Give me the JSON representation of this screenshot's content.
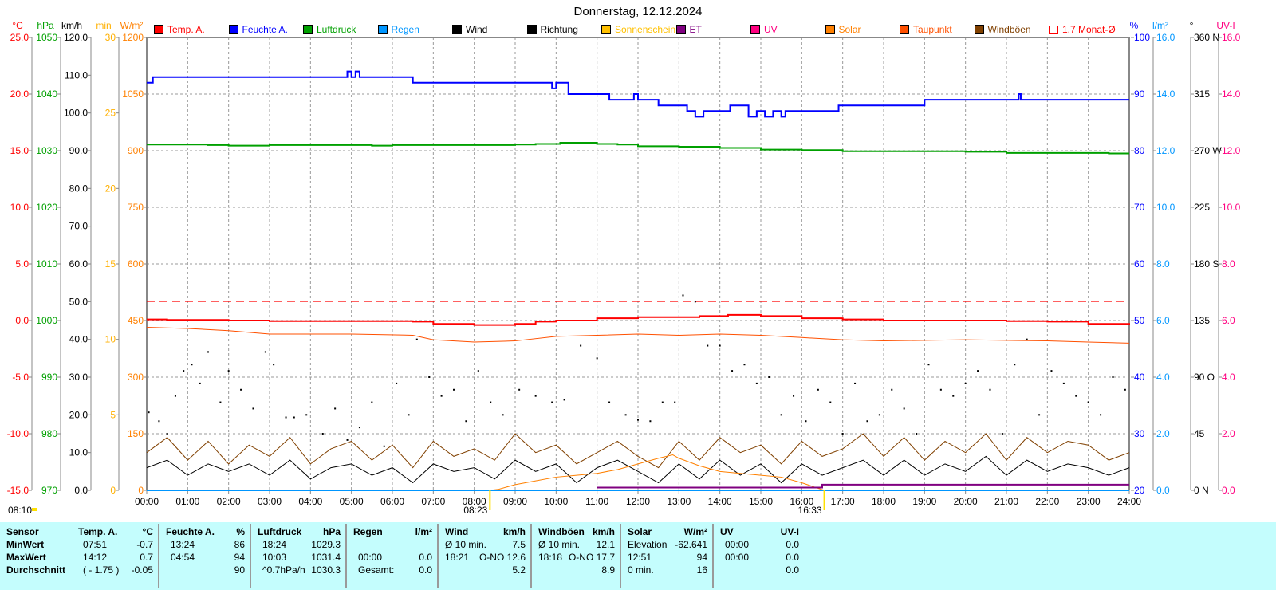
{
  "title": "Donnerstag, 12.12.2024",
  "legend": [
    {
      "label": "Temp. A.",
      "color": "#ff0000"
    },
    {
      "label": "Feuchte A.",
      "color": "#0000ff"
    },
    {
      "label": "Luftdruck",
      "color": "#00a000"
    },
    {
      "label": "Regen",
      "color": "#0096ff"
    },
    {
      "label": "Wind",
      "color": "#000000"
    },
    {
      "label": "Richtung",
      "color": "#000000"
    },
    {
      "label": "Sonnenschein",
      "color": "#ffc000"
    },
    {
      "label": "ET",
      "color": "#800080"
    },
    {
      "label": "UV",
      "color": "#ff0080"
    },
    {
      "label": "Solar",
      "color": "#ff8000"
    },
    {
      "label": "Taupunkt",
      "color": "#ff5000"
    },
    {
      "label": "Windböen",
      "color": "#804000"
    },
    {
      "label": "1.7 Monat-Ø",
      "color": "#ff0000",
      "outline": true
    }
  ],
  "sun_markers": {
    "left": "08:10",
    "sunrise": "08:23",
    "sunset": "16:33"
  },
  "chart_data": {
    "type": "line",
    "title": "Donnerstag, 12.12.2024",
    "x_ticks": [
      "00:00",
      "01:00",
      "02:00",
      "03:00",
      "04:00",
      "05:00",
      "06:00",
      "07:00",
      "08:00",
      "09:00",
      "10:00",
      "11:00",
      "12:00",
      "13:00",
      "14:00",
      "15:00",
      "16:00",
      "17:00",
      "18:00",
      "19:00",
      "20:00",
      "21:00",
      "22:00",
      "23:00",
      "24:00"
    ],
    "xlim": [
      0,
      24
    ],
    "grid": true,
    "axes": {
      "temp": {
        "unit": "°C",
        "color": "#ff0000",
        "side": "left",
        "range": [
          -15,
          25
        ],
        "ticks": [
          "25.0",
          "20.0",
          "15.0",
          "10.0",
          "5.0",
          "0.0",
          "-5.0",
          "-10.0",
          "-15.0"
        ]
      },
      "pressure": {
        "unit": "hPa",
        "color": "#00a000",
        "side": "left",
        "range": [
          970,
          1050
        ],
        "ticks": [
          "1050",
          "1040",
          "1030",
          "1020",
          "1010",
          "1000",
          "990",
          "980",
          "970"
        ]
      },
      "wind": {
        "unit": "km/h",
        "color": "#000000",
        "side": "left",
        "range": [
          0,
          120
        ],
        "ticks": [
          "120.0",
          "110.0",
          "100.0",
          "90.0",
          "80.0",
          "70.0",
          "60.0",
          "50.0",
          "40.0",
          "30.0",
          "20.0",
          "10.0",
          "0.0"
        ]
      },
      "sunshine": {
        "unit": "min",
        "color": "#ffb000",
        "side": "left",
        "range": [
          0,
          30
        ],
        "ticks": [
          "30",
          "25",
          "20",
          "15",
          "10",
          "5",
          "0"
        ]
      },
      "solar": {
        "unit": "W/m²",
        "color": "#ff8000",
        "side": "left",
        "range": [
          0,
          1200
        ],
        "ticks": [
          "1200",
          "1050",
          "900",
          "750",
          "600",
          "450",
          "300",
          "150",
          "0"
        ]
      },
      "humidity": {
        "unit": "%",
        "color": "#0000ff",
        "side": "right",
        "range": [
          20,
          100
        ],
        "ticks": [
          "100",
          "90",
          "80",
          "70",
          "60",
          "50",
          "40",
          "30",
          "20"
        ]
      },
      "rain": {
        "unit": "l/m²",
        "color": "#0096ff",
        "side": "right",
        "range": [
          0,
          16
        ],
        "ticks": [
          "16.0",
          "14.0",
          "12.0",
          "10.0",
          "8.0",
          "6.0",
          "4.0",
          "2.0",
          "0.0"
        ]
      },
      "direction": {
        "unit": "°",
        "color": "#000000",
        "side": "right",
        "range": [
          0,
          360
        ],
        "ticks": [
          "360 N",
          "315",
          "270 W",
          "225",
          "180 S",
          "135",
          "90 O",
          "45",
          "0 N"
        ]
      },
      "uv": {
        "unit": "UV-I",
        "color": "#ff0080",
        "side": "right",
        "range": [
          0,
          16
        ],
        "ticks": [
          "16.0",
          "14.0",
          "12.0",
          "10.0",
          "8.0",
          "6.0",
          "4.0",
          "2.0",
          "0.0"
        ]
      }
    },
    "series": [
      {
        "name": "Temp. A.",
        "axis": "temp",
        "color": "#ff0000",
        "width": 2,
        "step": true,
        "x": [
          0,
          0.5,
          2,
          3,
          5,
          6.5,
          7,
          8,
          9,
          9.5,
          10,
          11,
          12,
          13,
          13.5,
          14.2,
          15,
          16,
          17,
          18,
          20,
          21,
          22,
          23,
          24
        ],
        "y": [
          0.1,
          0.05,
          0,
          -0.05,
          -0.05,
          -0.1,
          -0.3,
          -0.4,
          -0.3,
          -0.1,
          0,
          0.2,
          0.3,
          0.3,
          0.4,
          0.5,
          0.4,
          0.2,
          0.1,
          0,
          0,
          -0.05,
          -0.1,
          -0.3,
          -0.4
        ]
      },
      {
        "name": "Taupunkt",
        "axis": "temp",
        "color": "#ff5000",
        "width": 1,
        "x": [
          0,
          1,
          2,
          3,
          5,
          6.5,
          7,
          8,
          9,
          10,
          11,
          12,
          13,
          14,
          15,
          16,
          17,
          18,
          20,
          22,
          23,
          24
        ],
        "y": [
          -0.6,
          -0.7,
          -0.9,
          -1.2,
          -1.2,
          -1.3,
          -1.7,
          -1.9,
          -1.8,
          -1.4,
          -1.3,
          -1.2,
          -1.3,
          -1.2,
          -1.3,
          -1.5,
          -1.7,
          -1.8,
          -1.7,
          -1.8,
          -1.9,
          -2.0
        ]
      },
      {
        "name": "Feuchte A.",
        "axis": "humidity",
        "color": "#0000ff",
        "width": 2,
        "step": true,
        "x": [
          0,
          0.15,
          4.9,
          5.0,
          5.1,
          5.2,
          6.5,
          9.9,
          10.0,
          10.3,
          11.3,
          11.9,
          12.0,
          12.5,
          13.2,
          13.4,
          13.6,
          14.2,
          14.25,
          14.7,
          14.9,
          15.1,
          15.3,
          15.5,
          15.6,
          16.9,
          19.0,
          21.3,
          21.35,
          21.4,
          24
        ],
        "y": [
          92,
          93,
          94,
          93,
          94,
          93,
          92,
          91,
          92,
          90,
          89,
          90,
          89,
          88,
          87,
          86,
          87,
          87,
          88,
          86,
          87,
          86,
          87,
          86,
          87,
          88,
          89,
          90,
          89,
          89,
          89
        ]
      },
      {
        "name": "Luftdruck",
        "axis": "pressure",
        "color": "#00a000",
        "width": 2,
        "step": true,
        "x": [
          0,
          1,
          1.5,
          2,
          2.5,
          3,
          4,
          5,
          5.5,
          6,
          7,
          8,
          9,
          9.5,
          10.1,
          11,
          11.5,
          12,
          13,
          14,
          15,
          16,
          17,
          18,
          19,
          20,
          21,
          22,
          23,
          23.5,
          24
        ],
        "y": [
          1031.1,
          1031.1,
          1031.0,
          1030.9,
          1030.9,
          1031.0,
          1031.0,
          1031.0,
          1030.9,
          1031.0,
          1031.0,
          1031.0,
          1031.1,
          1031.2,
          1031.4,
          1031.2,
          1031.1,
          1030.8,
          1030.7,
          1030.5,
          1030.2,
          1030.1,
          1029.9,
          1029.9,
          1029.9,
          1029.8,
          1029.6,
          1029.6,
          1029.6,
          1029.5,
          1029.5
        ]
      },
      {
        "name": "Windböen",
        "axis": "wind",
        "color": "#804000",
        "width": 1,
        "x": [
          0,
          0.5,
          1,
          1.5,
          2,
          2.5,
          3,
          3.5,
          4,
          4.5,
          5,
          5.5,
          6,
          6.5,
          7,
          7.5,
          8,
          8.5,
          9,
          9.5,
          10,
          10.5,
          11,
          11.5,
          12,
          12.5,
          13,
          13.5,
          14,
          14.5,
          15,
          15.5,
          16,
          16.5,
          17,
          17.5,
          18,
          18.5,
          19,
          19.5,
          20,
          20.5,
          21,
          21.5,
          22,
          22.5,
          23,
          23.5,
          24
        ],
        "y": [
          10,
          14,
          8,
          13,
          7,
          12,
          9,
          14,
          7,
          11,
          13,
          8,
          12,
          6,
          13,
          9,
          11,
          8,
          15,
          10,
          12,
          7,
          10,
          13,
          9,
          6,
          13,
          8,
          14,
          10,
          12,
          7,
          13,
          9,
          11,
          15,
          9,
          14,
          8,
          13,
          10,
          15,
          8,
          14,
          10,
          13,
          12,
          8,
          10
        ]
      },
      {
        "name": "Wind",
        "axis": "wind",
        "color": "#000000",
        "width": 1,
        "x": [
          0,
          0.5,
          1,
          1.5,
          2,
          2.5,
          3,
          3.5,
          4,
          4.5,
          5,
          5.5,
          6,
          6.5,
          7,
          7.5,
          8,
          8.5,
          9,
          9.5,
          10,
          10.5,
          11,
          11.5,
          12,
          12.5,
          13,
          13.5,
          14,
          14.5,
          15,
          15.5,
          16,
          16.5,
          17,
          17.5,
          18,
          18.5,
          19,
          19.5,
          20,
          20.5,
          21,
          21.5,
          22,
          22.5,
          23,
          23.5,
          24
        ],
        "y": [
          6,
          8,
          4,
          7,
          5,
          7,
          4,
          8,
          3,
          6,
          7,
          4,
          6,
          2,
          7,
          5,
          6,
          3,
          8,
          5,
          7,
          2,
          6,
          8,
          5,
          2,
          7,
          3,
          8,
          4,
          7,
          2,
          7,
          4,
          6,
          8,
          4,
          8,
          4,
          7,
          5,
          9,
          4,
          8,
          5,
          7,
          6,
          4,
          6
        ]
      },
      {
        "name": "Solar",
        "axis": "solar",
        "color": "#ff8000",
        "width": 1,
        "x": [
          0,
          8.38,
          8.6,
          9,
          9.5,
          10,
          10.5,
          11,
          11.5,
          12,
          12.5,
          12.85,
          13,
          13.5,
          14,
          14.5,
          15,
          15.5,
          16,
          16.55,
          24
        ],
        "y": [
          0,
          0,
          3,
          15,
          25,
          35,
          40,
          45,
          55,
          70,
          85,
          94,
          85,
          65,
          50,
          45,
          40,
          35,
          20,
          0,
          0
        ]
      },
      {
        "name": "Regen",
        "axis": "rain",
        "color": "#0096ff",
        "width": 2,
        "x": [
          0,
          24
        ],
        "y": [
          0,
          0
        ]
      },
      {
        "name": "ET",
        "axis": "rain",
        "color": "#800080",
        "width": 2,
        "step": true,
        "x": [
          11,
          16.5,
          24
        ],
        "y": [
          0.1,
          0.2,
          0.2
        ]
      },
      {
        "name": "1.7 Monat-Ø",
        "axis": "temp",
        "color": "#ff0000",
        "width": 1.5,
        "dashed": true,
        "x": [
          0,
          24
        ],
        "y": [
          1.7,
          1.7
        ]
      }
    ],
    "direction_points": {
      "axis": "direction",
      "x": [
        0.05,
        0.3,
        0.5,
        0.7,
        0.9,
        1.1,
        1.3,
        1.5,
        1.8,
        2.0,
        2.3,
        2.6,
        2.9,
        3.1,
        3.4,
        3.6,
        3.9,
        4.3,
        4.6,
        4.9,
        5.2,
        5.5,
        5.8,
        6.1,
        6.4,
        6.6,
        6.9,
        7.2,
        7.5,
        7.8,
        8.1,
        8.4,
        8.7,
        9.1,
        9.5,
        9.9,
        10.2,
        10.6,
        11.0,
        11.3,
        11.7,
        12.0,
        12.3,
        12.6,
        12.9,
        13.1,
        13.4,
        13.7,
        14.0,
        14.3,
        14.6,
        14.9,
        15.2,
        15.5,
        15.8,
        16.1,
        16.4,
        16.7,
        17.0,
        17.3,
        17.6,
        17.9,
        18.2,
        18.5,
        18.8,
        19.1,
        19.4,
        19.7,
        20.0,
        20.3,
        20.6,
        20.9,
        21.2,
        21.5,
        21.8,
        22.1,
        22.4,
        22.7,
        23.0,
        23.3,
        23.6,
        23.9
      ],
      "y": [
        62,
        55,
        45,
        75,
        95,
        100,
        85,
        110,
        70,
        95,
        80,
        65,
        110,
        100,
        58,
        58,
        60,
        45,
        65,
        40,
        50,
        70,
        35,
        85,
        60,
        120,
        90,
        75,
        80,
        55,
        95,
        70,
        60,
        80,
        75,
        70,
        72,
        115,
        105,
        70,
        60,
        56,
        55,
        70,
        70,
        155,
        150,
        115,
        115,
        95,
        100,
        85,
        90,
        60,
        75,
        55,
        80,
        70,
        45,
        85,
        55,
        60,
        80,
        65,
        45,
        100,
        80,
        75,
        85,
        95,
        80,
        45,
        100,
        120,
        60,
        95,
        85,
        75,
        70,
        60,
        90,
        80
      ]
    }
  },
  "table": {
    "headers": [
      {
        "name": "Sensor"
      },
      {
        "name": "Temp. A.",
        "unit": "°C"
      },
      {
        "name": "Feuchte A.",
        "unit": "%"
      },
      {
        "name": "Luftdruck",
        "unit": "hPa"
      },
      {
        "name": "Regen",
        "unit": "l/m²"
      },
      {
        "name": "Wind",
        "unit": "km/h"
      },
      {
        "name": "Windböen",
        "unit": "km/h"
      },
      {
        "name": "Solar",
        "unit": "W/m²"
      },
      {
        "name": "UV",
        "unit": "UV-I"
      }
    ],
    "rows": [
      {
        "label": "MinWert",
        "cells": [
          [
            "07:51",
            "-0.7"
          ],
          [
            "13:24",
            "86"
          ],
          [
            "18:24",
            "1029.3"
          ],
          [
            "",
            ""
          ],
          [
            "Ø 10 min.",
            "7.5"
          ],
          [
            "Ø 10 min.",
            "12.1"
          ],
          [
            "Elevation",
            "-62.641"
          ],
          [
            "00:00",
            "0.0"
          ]
        ]
      },
      {
        "label": "MaxWert",
        "cells": [
          [
            "14:12",
            "0.7"
          ],
          [
            "04:54",
            "94"
          ],
          [
            "10:03",
            "1031.4"
          ],
          [
            "00:00",
            "0.0"
          ],
          [
            "18:21",
            "O-NO 12.6"
          ],
          [
            "18:18",
            "O-NO 17.7"
          ],
          [
            "12:51",
            "94"
          ],
          [
            "00:00",
            "0.0"
          ]
        ]
      },
      {
        "label": "Durchschnitt",
        "cells": [
          [
            "( - 1.75 )",
            "-0.05"
          ],
          [
            "",
            "90"
          ],
          [
            "^0.7hPa/h",
            "1030.3"
          ],
          [
            "Gesamt:",
            "0.0"
          ],
          [
            "",
            "5.2"
          ],
          [
            "",
            "8.9"
          ],
          [
            "0 min.",
            "16"
          ],
          [
            "",
            "0.0"
          ]
        ]
      }
    ]
  }
}
